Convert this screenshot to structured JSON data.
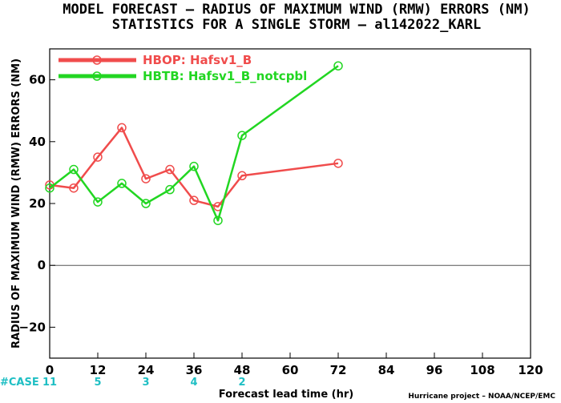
{
  "title_line1": "MODEL FORECAST – RADIUS OF MAXIMUM WIND (RMW) ERRORS (NM)",
  "title_line2": "STATISTICS FOR A SINGLE STORM – al142022_KARL",
  "credit": "Hurricane project – NOAA/NCEP/EMC",
  "case_label": "#CASE",
  "cases": [
    {
      "x": 0,
      "label": "11"
    },
    {
      "x": 12,
      "label": "5"
    },
    {
      "x": 24,
      "label": "3"
    },
    {
      "x": 36,
      "label": "4"
    },
    {
      "x": 48,
      "label": "2"
    }
  ],
  "colors": {
    "case_text": "#1fbfc4"
  },
  "chart_data": {
    "type": "line",
    "title": "MODEL FORECAST – RADIUS OF MAXIMUM WIND (RMW) ERRORS (NM)",
    "subtitle": "STATISTICS FOR A SINGLE STORM – al142022_KARL",
    "xlabel": "Forecast lead time (hr)",
    "ylabel": "RADIUS OF MAXIMUM WIND (RMW) ERRORS (NM)",
    "xlim": [
      0,
      120
    ],
    "ylim": [
      -30,
      70
    ],
    "xticks": [
      0,
      12,
      24,
      36,
      48,
      60,
      72,
      84,
      96,
      108,
      120
    ],
    "yticks": [
      -20,
      0,
      20,
      40,
      60
    ],
    "ytick_labels": [
      "−20",
      "0",
      "20",
      "40",
      "60"
    ],
    "zero_line": true,
    "grid": false,
    "legend_position": "top-left",
    "series": [
      {
        "name": "HBOP: Hafsv1_B",
        "color": "#f04c4c",
        "x": [
          0,
          6,
          12,
          18,
          24,
          30,
          36,
          42,
          48,
          72
        ],
        "y": [
          26,
          25,
          35,
          44.5,
          28,
          31,
          21,
          19,
          29,
          33
        ]
      },
      {
        "name": "HBTB: Hafsv1_B_notcpbl",
        "color": "#22d622",
        "x": [
          0,
          6,
          12,
          18,
          24,
          30,
          36,
          42,
          48,
          72
        ],
        "y": [
          25,
          31,
          20.5,
          26.5,
          20,
          24.5,
          32,
          14.5,
          42,
          64.5
        ]
      }
    ]
  }
}
